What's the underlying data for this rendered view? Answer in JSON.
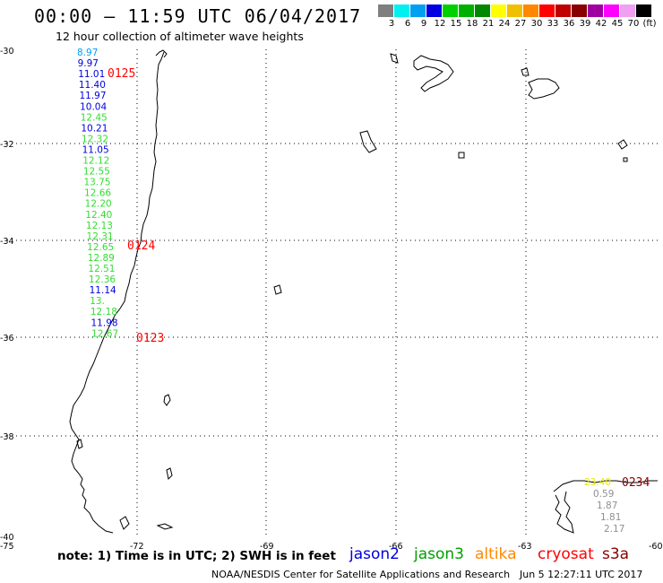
{
  "title": "00:00 – 11:59 UTC 06/04/2017",
  "subtitle": "12 hour collection of altimeter wave heights",
  "legend": {
    "colors": [
      "#7f7f7f",
      "#00f0f0",
      "#00a0f0",
      "#0000e0",
      "#00d000",
      "#00b000",
      "#008800",
      "#ffff00",
      "#f0c000",
      "#ff8800",
      "#ff0000",
      "#c00000",
      "#880000",
      "#a000a0",
      "#ff00ff",
      "#f0a0f0",
      "#000000"
    ],
    "labels": [
      "3",
      "6",
      "9",
      "12",
      "15",
      "18",
      "21",
      "24",
      "27",
      "30",
      "33",
      "36",
      "39",
      "42",
      "45",
      "70",
      "(ft)"
    ]
  },
  "axes": {
    "lon_ticks": [
      "-75",
      "-72",
      "-69",
      "-66",
      "-63",
      "-60"
    ],
    "lat_ticks": [
      "-30",
      "-32",
      "-34",
      "-36",
      "-38",
      "-40"
    ]
  },
  "tracks": [
    {
      "values": [
        "8.97",
        "9.97",
        "11.01",
        "11.40",
        "11.97",
        "10.04",
        "12.45",
        "10.21",
        "12.32",
        "11.05",
        "12.12",
        "12.55",
        "13.75",
        "12.66",
        "12.20",
        "12.40",
        "12.13",
        "12.31",
        "12.65",
        "12.89",
        "12.51",
        "12.36",
        "11.14",
        "13.",
        "12.18",
        "11.98",
        "12.67"
      ],
      "colors": [
        "#00a0f0",
        "#0000e0",
        "#0000e0",
        "#0000e0",
        "#0000e0",
        "#0000e0",
        "#33dd33",
        "#0000e0",
        "#33dd33",
        "#0000e0",
        "#33dd33",
        "#33dd33",
        "#33dd33",
        "#33dd33",
        "#33dd33",
        "#33dd33",
        "#33dd33",
        "#33dd33",
        "#33dd33",
        "#33dd33",
        "#33dd33",
        "#33dd33",
        "#0000e0",
        "#33dd33",
        "#33dd33",
        "#0000e0",
        "#33dd33"
      ]
    },
    {
      "values": [
        "23.40",
        "0.59",
        "1.87",
        "1.81",
        "2.17"
      ],
      "colors": [
        "#e8e800",
        "#909090",
        "#909090",
        "#909090",
        "#909090"
      ]
    }
  ],
  "time_labels": [
    "0125",
    "0124",
    "0123",
    "0234"
  ],
  "time_label_colors": [
    "#ff0000",
    "#ff0000",
    "#ff0000",
    "#880000"
  ],
  "note": "note:  1) Time is in UTC;  2) SWH is in feet",
  "satellites": [
    {
      "name": "jason2",
      "color": "#0000e0"
    },
    {
      "name": "jason3",
      "color": "#00a000"
    },
    {
      "name": "altika",
      "color": "#ff8800"
    },
    {
      "name": "cryosat",
      "color": "#ff0000"
    },
    {
      "name": "s3a",
      "color": "#880000"
    }
  ],
  "footer": "NOAA/NESDIS Center for Satellite Applications and Research",
  "footer_time": "Jun  5 12:27:11 UTC 2017"
}
